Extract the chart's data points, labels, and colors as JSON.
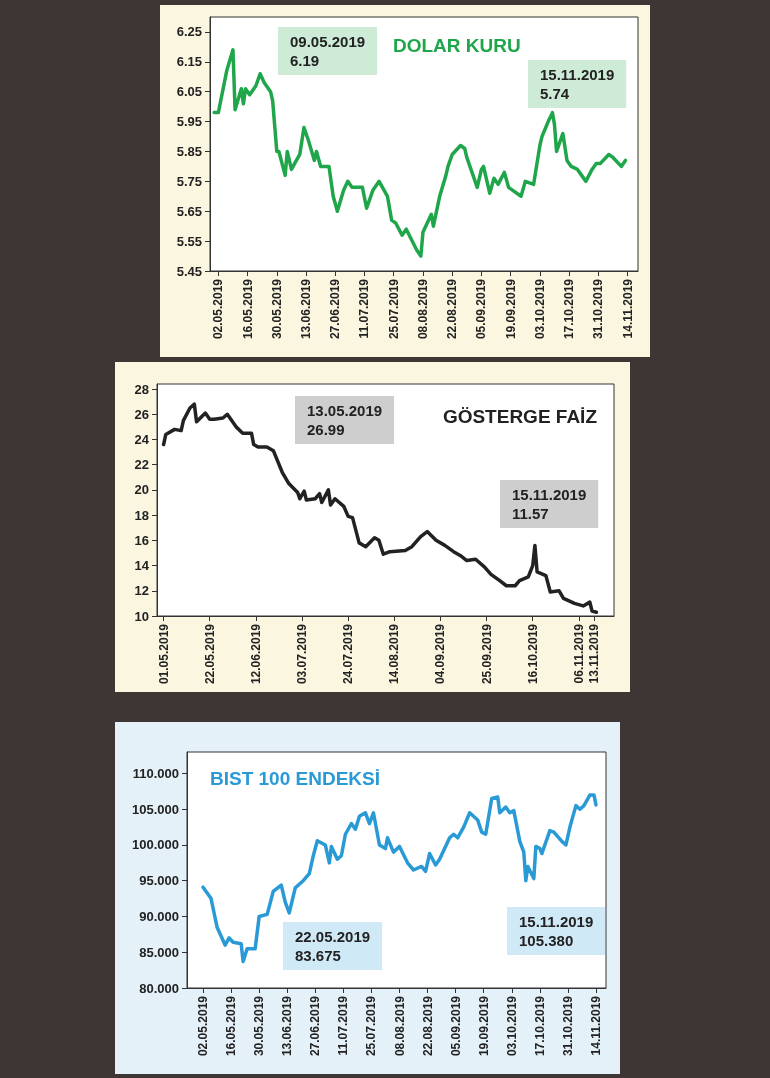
{
  "chart_data": [
    {
      "type": "line",
      "title": "DOLAR KURU",
      "xlim": [
        "2019-04-28",
        "2019-11-19"
      ],
      "ylim": [
        5.45,
        6.3
      ],
      "yticks": [
        5.45,
        5.55,
        5.65,
        5.75,
        5.85,
        5.95,
        6.05,
        6.15,
        6.25
      ],
      "xticks": [
        {
          "value": "2019-05-02",
          "label": "02.05.2019"
        },
        {
          "value": "2019-05-16",
          "label": "16.05.2019"
        },
        {
          "value": "2019-05-30",
          "label": "30.05.2019"
        },
        {
          "value": "2019-06-13",
          "label": "13.06.2019"
        },
        {
          "value": "2019-06-27",
          "label": "27.06.2019"
        },
        {
          "value": "2019-07-11",
          "label": "11.07.2019"
        },
        {
          "value": "2019-07-25",
          "label": "25.07.2019"
        },
        {
          "value": "2019-08-08",
          "label": "08.08.2019"
        },
        {
          "value": "2019-08-22",
          "label": "22.08.2019"
        },
        {
          "value": "2019-09-05",
          "label": "05.09.2019"
        },
        {
          "value": "2019-09-19",
          "label": "19.09.2019"
        },
        {
          "value": "2019-10-03",
          "label": "03.10.2019"
        },
        {
          "value": "2019-10-17",
          "label": "17.10.2019"
        },
        {
          "value": "2019-10-31",
          "label": "31.10.2019"
        },
        {
          "value": "2019-11-14",
          "label": "14.11.2019"
        }
      ],
      "annotations": [
        "09.05.2019\n6.19",
        "15.11.2019\n5.74"
      ],
      "series": [
        {
          "color": "#1fa64a",
          "x": [
            "2019-04-30",
            "2019-05-02",
            "2019-05-06",
            "2019-05-09",
            "2019-05-10",
            "2019-05-13",
            "2019-05-14",
            "2019-05-15",
            "2019-05-17",
            "2019-05-20",
            "2019-05-22",
            "2019-05-24",
            "2019-05-27",
            "2019-05-28",
            "2019-05-30",
            "2019-05-31",
            "2019-06-03",
            "2019-06-04",
            "2019-06-06",
            "2019-06-10",
            "2019-06-12",
            "2019-06-14",
            "2019-06-17",
            "2019-06-18",
            "2019-06-20",
            "2019-06-24",
            "2019-06-26",
            "2019-06-28",
            "2019-07-01",
            "2019-07-03",
            "2019-07-05",
            "2019-07-10",
            "2019-07-12",
            "2019-07-15",
            "2019-07-18",
            "2019-07-22",
            "2019-07-24",
            "2019-07-26",
            "2019-07-29",
            "2019-07-31",
            "2019-08-05",
            "2019-08-07",
            "2019-08-08",
            "2019-08-12",
            "2019-08-13",
            "2019-08-16",
            "2019-08-19",
            "2019-08-20",
            "2019-08-22",
            "2019-08-26",
            "2019-08-28",
            "2019-08-29",
            "2019-09-03",
            "2019-09-05",
            "2019-09-06",
            "2019-09-09",
            "2019-09-11",
            "2019-09-13",
            "2019-09-16",
            "2019-09-18",
            "2019-09-20",
            "2019-09-24",
            "2019-09-26",
            "2019-09-30",
            "2019-10-03",
            "2019-10-04",
            "2019-10-07",
            "2019-10-09",
            "2019-10-10",
            "2019-10-11",
            "2019-10-14",
            "2019-10-16",
            "2019-10-18",
            "2019-10-21",
            "2019-10-23",
            "2019-10-25",
            "2019-10-28",
            "2019-10-30",
            "2019-11-01",
            "2019-11-05",
            "2019-11-07",
            "2019-11-11",
            "2019-11-13"
          ],
          "values": [
            5.98,
            5.98,
            6.12,
            6.19,
            5.99,
            6.06,
            6.01,
            6.06,
            6.04,
            6.07,
            6.11,
            6.08,
            6.05,
            6.02,
            5.85,
            5.85,
            5.77,
            5.85,
            5.79,
            5.84,
            5.93,
            5.89,
            5.82,
            5.85,
            5.8,
            5.8,
            5.7,
            5.65,
            5.72,
            5.75,
            5.73,
            5.73,
            5.66,
            5.72,
            5.75,
            5.7,
            5.62,
            5.61,
            5.57,
            5.59,
            5.52,
            5.5,
            5.58,
            5.64,
            5.6,
            5.7,
            5.77,
            5.8,
            5.84,
            5.87,
            5.86,
            5.83,
            5.73,
            5.79,
            5.8,
            5.71,
            5.76,
            5.74,
            5.78,
            5.73,
            5.72,
            5.7,
            5.75,
            5.74,
            5.87,
            5.9,
            5.95,
            5.98,
            5.94,
            5.85,
            5.91,
            5.82,
            5.8,
            5.79,
            5.77,
            5.75,
            5.79,
            5.81,
            5.81,
            5.84,
            5.83,
            5.8,
            5.82
          ]
        }
      ]
    },
    {
      "type": "line",
      "title": "GÖSTERGE FAİZ",
      "xlim": [
        "2019-04-28",
        "2019-11-22"
      ],
      "ylim": [
        10,
        28.4
      ],
      "yticks": [
        10,
        12,
        14,
        16,
        18,
        20,
        22,
        24,
        26,
        28
      ],
      "xticks": [
        {
          "value": "2019-05-01",
          "label": "01.05.2019"
        },
        {
          "value": "2019-05-22",
          "label": "22.05.2019"
        },
        {
          "value": "2019-06-12",
          "label": "12.06.2019"
        },
        {
          "value": "2019-07-03",
          "label": "03.07.2019"
        },
        {
          "value": "2019-07-24",
          "label": "24.07.2019"
        },
        {
          "value": "2019-08-14",
          "label": "14.08.2019"
        },
        {
          "value": "2019-09-04",
          "label": "04.09.2019"
        },
        {
          "value": "2019-09-25",
          "label": "25.09.2019"
        },
        {
          "value": "2019-10-16",
          "label": "16.10.2019"
        },
        {
          "value": "2019-11-06",
          "label": "06.11.2019"
        },
        {
          "value": "2019-11-13",
          "label": "13.11.2019"
        }
      ],
      "annotations": [
        "13.05.2019\n26.99",
        "15.11.2019\n11.57"
      ],
      "series": [
        {
          "color": "#222222",
          "x": [
            "2019-05-01",
            "2019-05-02",
            "2019-05-06",
            "2019-05-09",
            "2019-05-10",
            "2019-05-13",
            "2019-05-15",
            "2019-05-16",
            "2019-05-20",
            "2019-05-22",
            "2019-05-24",
            "2019-05-28",
            "2019-05-30",
            "2019-06-03",
            "2019-06-06",
            "2019-06-10",
            "2019-06-11",
            "2019-06-13",
            "2019-06-17",
            "2019-06-20",
            "2019-06-24",
            "2019-06-27",
            "2019-07-01",
            "2019-07-02",
            "2019-07-04",
            "2019-07-05",
            "2019-07-09",
            "2019-07-11",
            "2019-07-12",
            "2019-07-15",
            "2019-07-16",
            "2019-07-18",
            "2019-07-22",
            "2019-07-24",
            "2019-07-26",
            "2019-07-29",
            "2019-08-01",
            "2019-08-05",
            "2019-08-07",
            "2019-08-09",
            "2019-08-12",
            "2019-08-19",
            "2019-08-22",
            "2019-08-26",
            "2019-08-29",
            "2019-09-02",
            "2019-09-06",
            "2019-09-10",
            "2019-09-13",
            "2019-09-16",
            "2019-09-20",
            "2019-09-24",
            "2019-09-27",
            "2019-10-01",
            "2019-10-04",
            "2019-10-08",
            "2019-10-10",
            "2019-10-14",
            "2019-10-16",
            "2019-10-17",
            "2019-10-18",
            "2019-10-22",
            "2019-10-24",
            "2019-10-28",
            "2019-10-30",
            "2019-11-04",
            "2019-11-08",
            "2019-11-11",
            "2019-11-12",
            "2019-11-14"
          ],
          "values": [
            23.6,
            24.4,
            24.8,
            24.7,
            25.5,
            26.5,
            26.8,
            25.4,
            26.1,
            25.6,
            25.6,
            25.7,
            26,
            25,
            24.5,
            24.5,
            23.6,
            23.4,
            23.4,
            23.1,
            21.4,
            20.5,
            19.8,
            19.3,
            19.9,
            19.2,
            19.3,
            19.7,
            19,
            20,
            18.8,
            19.3,
            18.7,
            17.9,
            17.8,
            15.8,
            15.5,
            16.2,
            16,
            14.9,
            15.1,
            15.2,
            15.5,
            16.3,
            16.7,
            16,
            15.6,
            15.1,
            14.8,
            14.4,
            14.5,
            13.9,
            13.3,
            12.8,
            12.4,
            12.4,
            12.8,
            13.1,
            14,
            15.6,
            13.5,
            13.2,
            11.9,
            12,
            11.4,
            11,
            10.8,
            11.1,
            10.4,
            10.3
          ]
        }
      ]
    },
    {
      "type": "line",
      "title": "BIST 100 ENDEKSİ",
      "xlim": [
        "2019-04-24",
        "2019-11-19"
      ],
      "ylim": [
        80,
        113
      ],
      "yticks": [
        {
          "value": 80,
          "label": "80.000"
        },
        {
          "value": 85,
          "label": "85.000"
        },
        {
          "value": 90,
          "label": "90.000"
        },
        {
          "value": 95,
          "label": "95.000"
        },
        {
          "value": 100,
          "label": "100.000"
        },
        {
          "value": 105,
          "label": "105.000"
        },
        {
          "value": 110,
          "label": "110.000"
        }
      ],
      "xticks": [
        {
          "value": "2019-05-02",
          "label": "02.05.2019"
        },
        {
          "value": "2019-05-16",
          "label": "16.05.2019"
        },
        {
          "value": "2019-05-30",
          "label": "30.05.2019"
        },
        {
          "value": "2019-06-13",
          "label": "13.06.2019"
        },
        {
          "value": "2019-06-27",
          "label": "27.06.2019"
        },
        {
          "value": "2019-07-11",
          "label": "11.07.2019"
        },
        {
          "value": "2019-07-25",
          "label": "25.07.2019"
        },
        {
          "value": "2019-08-08",
          "label": "08.08.2019"
        },
        {
          "value": "2019-08-22",
          "label": "22.08.2019"
        },
        {
          "value": "2019-09-05",
          "label": "05.09.2019"
        },
        {
          "value": "2019-09-19",
          "label": "19.09.2019"
        },
        {
          "value": "2019-10-03",
          "label": "03.10.2019"
        },
        {
          "value": "2019-10-17",
          "label": "17.10.2019"
        },
        {
          "value": "2019-10-31",
          "label": "31.10.2019"
        },
        {
          "value": "2019-11-14",
          "label": "14.11.2019"
        }
      ],
      "annotations": [
        "22.05.2019\n83.675",
        "15.11.2019\n105.380"
      ],
      "series": [
        {
          "color": "#2a9ad6",
          "x": [
            "2019-05-02",
            "2019-05-06",
            "2019-05-09",
            "2019-05-13",
            "2019-05-15",
            "2019-05-17",
            "2019-05-21",
            "2019-05-22",
            "2019-05-24",
            "2019-05-28",
            "2019-05-30",
            "2019-06-03",
            "2019-06-06",
            "2019-06-10",
            "2019-06-12",
            "2019-06-14",
            "2019-06-17",
            "2019-06-19",
            "2019-06-21",
            "2019-06-24",
            "2019-06-26",
            "2019-06-28",
            "2019-07-02",
            "2019-07-04",
            "2019-07-05",
            "2019-07-08",
            "2019-07-10",
            "2019-07-12",
            "2019-07-15",
            "2019-07-17",
            "2019-07-19",
            "2019-07-22",
            "2019-07-24",
            "2019-07-26",
            "2019-07-29",
            "2019-08-01",
            "2019-08-02",
            "2019-08-05",
            "2019-08-08",
            "2019-08-12",
            "2019-08-15",
            "2019-08-19",
            "2019-08-21",
            "2019-08-23",
            "2019-08-26",
            "2019-08-28",
            "2019-09-02",
            "2019-09-04",
            "2019-09-06",
            "2019-09-09",
            "2019-09-12",
            "2019-09-16",
            "2019-09-18",
            "2019-09-20",
            "2019-09-23",
            "2019-09-26",
            "2019-09-27",
            "2019-09-30",
            "2019-10-02",
            "2019-10-04",
            "2019-10-07",
            "2019-10-09",
            "2019-10-10",
            "2019-10-11",
            "2019-10-14",
            "2019-10-15",
            "2019-10-17",
            "2019-10-18",
            "2019-10-22",
            "2019-10-24",
            "2019-10-28",
            "2019-10-30",
            "2019-11-01",
            "2019-11-04",
            "2019-11-06",
            "2019-11-08",
            "2019-11-11",
            "2019-11-13",
            "2019-11-14"
          ],
          "values": [
            94.1,
            92.5,
            88.5,
            86,
            87,
            86.4,
            86.2,
            83.7,
            85.5,
            85.5,
            90,
            90.3,
            93.5,
            94.4,
            92,
            90.5,
            94,
            94.5,
            95,
            96,
            98.5,
            100.6,
            100,
            97.5,
            99.8,
            98,
            98.5,
            101.5,
            103,
            102.2,
            104,
            104.5,
            103,
            104.5,
            100,
            99.5,
            101,
            99,
            99.8,
            97.5,
            96.5,
            97,
            96.3,
            98.8,
            97.2,
            98,
            101,
            101.5,
            101,
            102.5,
            104.5,
            103.5,
            101.8,
            101.5,
            106.5,
            106.7,
            104.5,
            105.3,
            104.5,
            104.8,
            100.5,
            99,
            95,
            97,
            95.3,
            99.8,
            99.5,
            98.8,
            102,
            101.8,
            100.5,
            100,
            102.5,
            105.5,
            105,
            105.5,
            107,
            107,
            105.6
          ]
        }
      ]
    }
  ]
}
